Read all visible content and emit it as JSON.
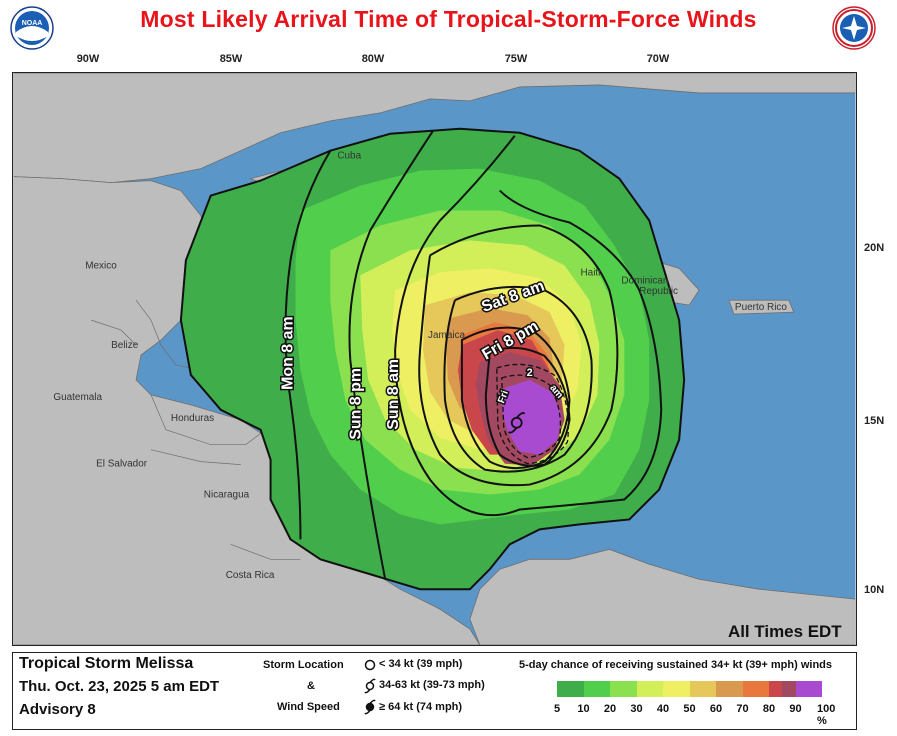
{
  "title": "Most Likely Arrival Time of Tropical-Storm-Force Winds",
  "logos": {
    "left": "NOAA",
    "right": "NATIONAL WEATHER SERVICE"
  },
  "lon_labels": [
    "90W",
    "85W",
    "80W",
    "75W",
    "70W"
  ],
  "lat_labels": [
    "20N",
    "15N",
    "10N"
  ],
  "places": {
    "cuba": "Cuba",
    "mexico": "Mexico",
    "belize": "Belize",
    "guatemala": "Guatemala",
    "honduras": "Honduras",
    "el_salvador": "El Salvador",
    "nicaragua": "Nicaragua",
    "costa_rica": "Costa Rica",
    "jamaica": "Jamaica",
    "haiti": "Haiti",
    "dominican_republic_1": "Dominican",
    "dominican_republic_2": "Republic",
    "puerto_rico": "Puerto Rico"
  },
  "arrival_labels": {
    "mon_8am": "Mon 8 am",
    "sun_8pm": "Sun 8 pm",
    "sun_8am": "Sun 8 am",
    "sat_8am": "Sat 8 am",
    "fri_8pm": "Fri 8 pm",
    "fri_2am_num": "2",
    "fri_2am_day": "Fri",
    "fri_2am_am": "am"
  },
  "times_note": "All Times EDT",
  "storm": {
    "name": "Tropical Storm Melissa",
    "date": "Thu. Oct. 23, 2025  5 am EDT",
    "advisory": "Advisory 8"
  },
  "key": {
    "storm_location": "Storm Location",
    "amp": "&",
    "wind_speed": "Wind Speed",
    "items": [
      "< 34 kt (39 mph)",
      "34-63 kt (39-73 mph)",
      "≥ 64 kt (74 mph)"
    ]
  },
  "probability": {
    "title": "5-day chance of receiving sustained 34+ kt (39+ mph) winds",
    "ticks": [
      "5",
      "10",
      "20",
      "30",
      "40",
      "50",
      "60",
      "70",
      "80",
      "90",
      "100 %"
    ],
    "colors": [
      "#3fad4a",
      "#51cf4c",
      "#8ae04e",
      "#d2ef5a",
      "#efef63",
      "#e6c75a",
      "#d99a4f",
      "#e9783f",
      "#c9474a",
      "#a24860",
      "#a94bd0"
    ]
  },
  "colors": {
    "ocean": "#5b96c8",
    "land": "#bdbdbd",
    "title": "#e8141c"
  }
}
